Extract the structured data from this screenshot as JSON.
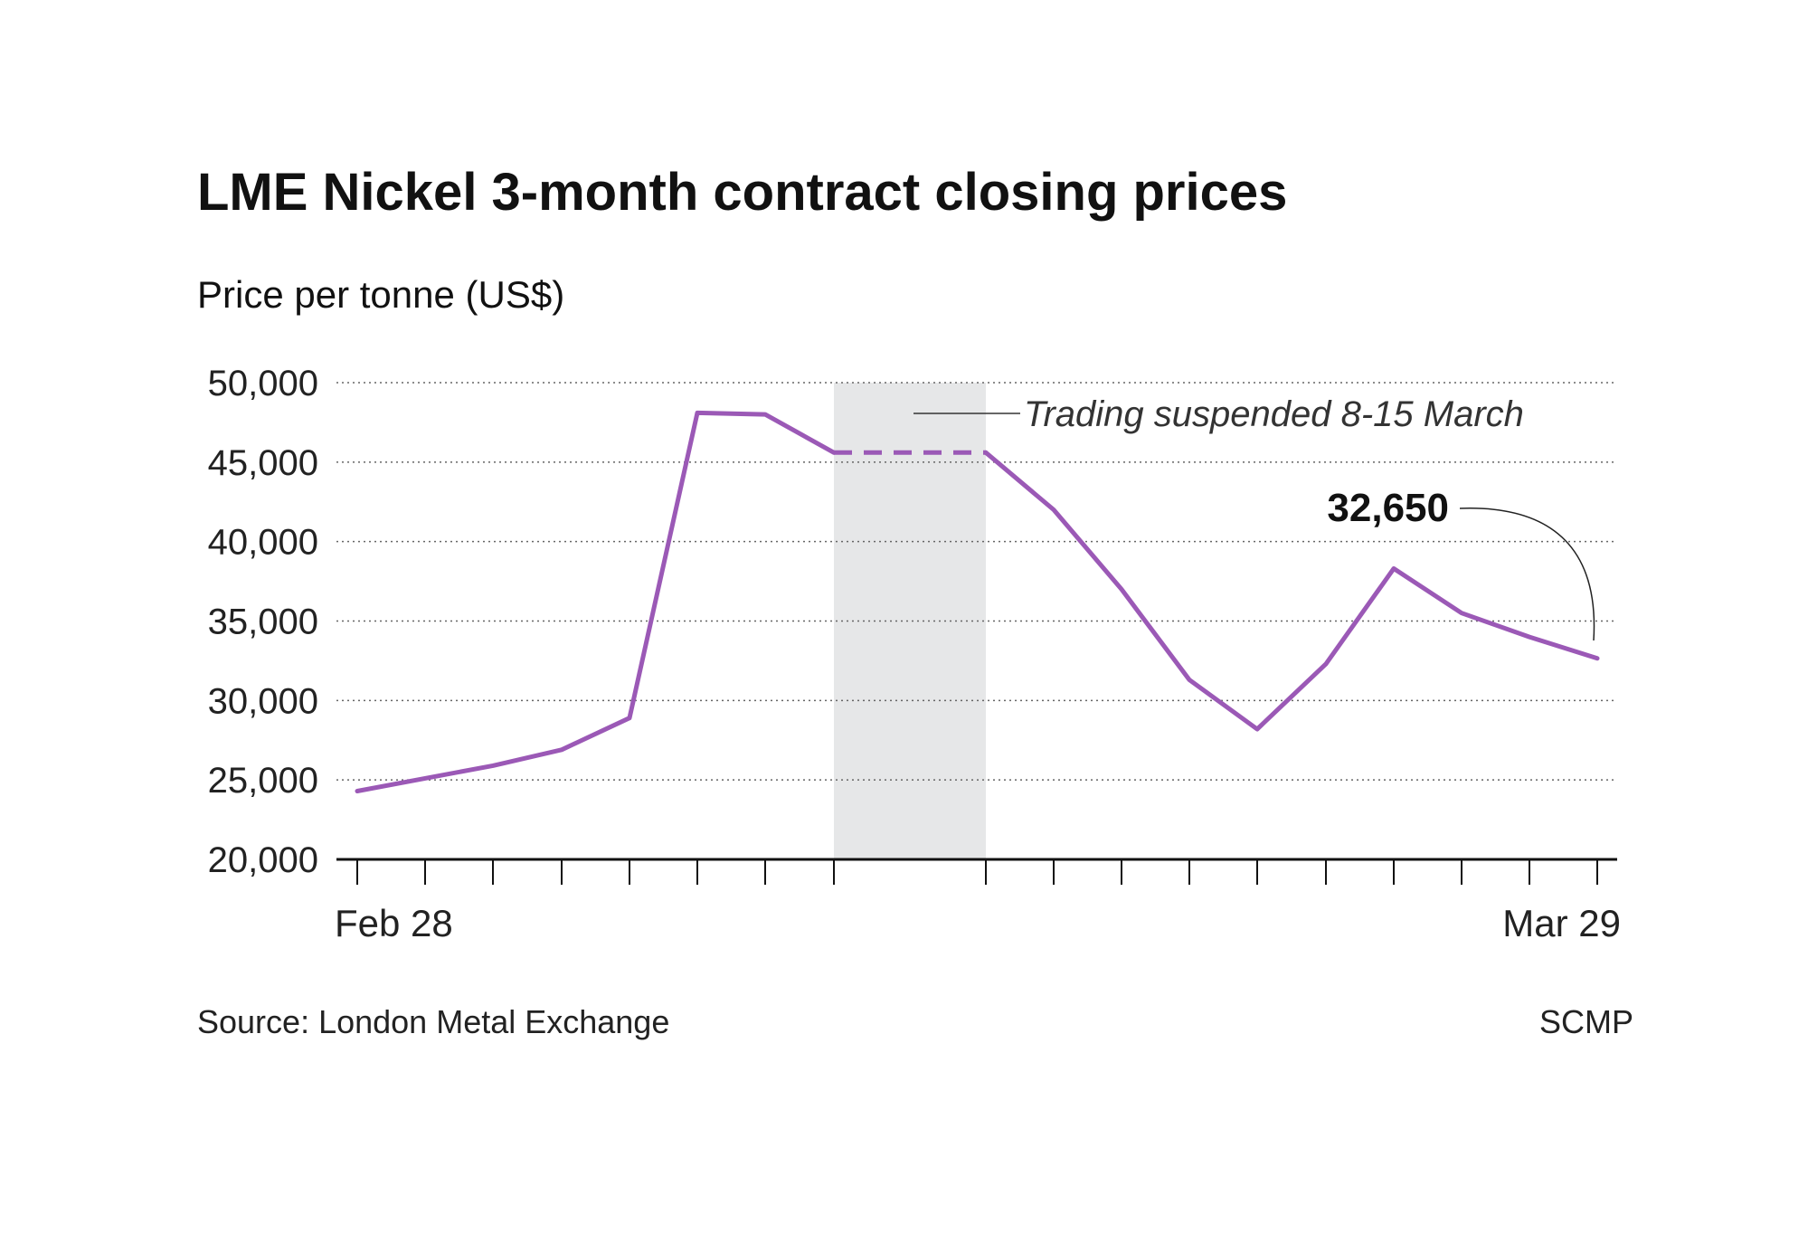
{
  "chart_data": {
    "type": "line",
    "title": "LME Nickel 3-month contract closing prices",
    "ylabel": "Price per tonne (US$)",
    "ylim": [
      20000,
      50000
    ],
    "y_ticks": [
      50000,
      45000,
      40000,
      35000,
      30000,
      25000,
      20000
    ],
    "y_tick_labels": [
      "50,000",
      "45,000",
      "40,000",
      "35,000",
      "30,000",
      "25,000",
      "20,000"
    ],
    "x_tick_labels": [
      "Feb 28",
      "Mar 29"
    ],
    "grid": "horizontal-dotted",
    "series": [
      {
        "color": "#9b59b6",
        "x": [
          "2022-02-28",
          "2022-03-01",
          "2022-03-02",
          "2022-03-03",
          "2022-03-04",
          "2022-03-07",
          "2022-03-08",
          "2022-03-09",
          "2022-03-16",
          "2022-03-17",
          "2022-03-18",
          "2022-03-21",
          "2022-03-22",
          "2022-03-23",
          "2022-03-24",
          "2022-03-25",
          "2022-03-28",
          "2022-03-29"
        ],
        "values": [
          24300,
          25100,
          25900,
          26900,
          28900,
          48100,
          48000,
          45600,
          45600,
          42000,
          37000,
          31300,
          28200,
          32300,
          38300,
          35500,
          34000,
          32650
        ],
        "dashed_segment": [
          "2022-03-09",
          "2022-03-16"
        ]
      }
    ],
    "annotations": {
      "suspended_text": "Trading suspended 8-15 March",
      "suspended_range": [
        "2022-03-09",
        "2022-03-16"
      ],
      "shade_color": "#e6e7e8",
      "last_value_label": "32,650"
    }
  },
  "footer": {
    "source": "Source: London Metal Exchange",
    "credit": "SCMP"
  }
}
